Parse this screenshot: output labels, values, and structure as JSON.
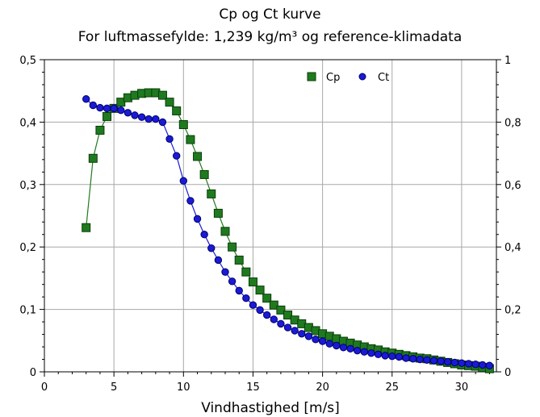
{
  "chart_data": {
    "type": "scatter",
    "title": "Cp og Ct kurve",
    "subtitle": "For luftmassefylde: 1,239 kg/m³ og reference-klimadata",
    "xlabel": "Vindhastighed [m/s]",
    "xlim": [
      0,
      32.5
    ],
    "ylim_left": [
      0,
      0.5
    ],
    "ylim_right": [
      0,
      1
    ],
    "x_ticks": [
      0,
      5,
      10,
      15,
      20,
      25,
      30
    ],
    "x_tick_labels": [
      "0",
      "5",
      "10",
      "15",
      "20",
      "25",
      "30"
    ],
    "y_left_ticks": [
      0,
      0.1,
      0.2,
      0.3,
      0.4,
      0.5
    ],
    "y_left_tick_labels": [
      "0",
      "0,1",
      "0,2",
      "0,3",
      "0,4",
      "0,5"
    ],
    "y_right_ticks": [
      0,
      0.2,
      0.4,
      0.6,
      0.8,
      1
    ],
    "y_right_tick_labels": [
      "0",
      "0,2",
      "0,4",
      "0,6",
      "0,8",
      "1"
    ],
    "grid": true,
    "legend_position": "top-right",
    "series": [
      {
        "name": "Cp",
        "axis": "left",
        "marker": "square",
        "color": "#1f7a1f",
        "x": [
          3,
          3.5,
          4,
          4.5,
          5,
          5.5,
          6,
          6.5,
          7,
          7.5,
          8,
          8.5,
          9,
          9.5,
          10,
          10.5,
          11,
          11.5,
          12,
          12.5,
          13,
          13.5,
          14,
          14.5,
          15,
          15.5,
          16,
          16.5,
          17,
          17.5,
          18,
          18.5,
          19,
          19.5,
          20,
          20.5,
          21,
          21.5,
          22,
          22.5,
          23,
          23.5,
          24,
          24.5,
          25,
          25.5,
          26,
          26.5,
          27,
          27.5,
          28,
          28.5,
          29,
          29.5,
          30,
          30.5,
          31,
          31.5,
          32
        ],
        "y": [
          0.231,
          0.342,
          0.387,
          0.409,
          0.422,
          0.432,
          0.439,
          0.443,
          0.446,
          0.447,
          0.447,
          0.443,
          0.432,
          0.418,
          0.396,
          0.372,
          0.345,
          0.316,
          0.285,
          0.254,
          0.225,
          0.2,
          0.179,
          0.16,
          0.144,
          0.131,
          0.118,
          0.107,
          0.099,
          0.091,
          0.083,
          0.077,
          0.071,
          0.066,
          0.061,
          0.057,
          0.053,
          0.049,
          0.046,
          0.043,
          0.04,
          0.037,
          0.035,
          0.032,
          0.03,
          0.028,
          0.026,
          0.024,
          0.022,
          0.021,
          0.019,
          0.017,
          0.015,
          0.013,
          0.011,
          0.01,
          0.009,
          0.007,
          0.005
        ]
      },
      {
        "name": "Ct",
        "axis": "right",
        "marker": "circle",
        "color": "#1a1ad6",
        "x": [
          3,
          3.5,
          4,
          4.5,
          5,
          5.5,
          6,
          6.5,
          7,
          7.5,
          8,
          8.5,
          9,
          9.5,
          10,
          10.5,
          11,
          11.5,
          12,
          12.5,
          13,
          13.5,
          14,
          14.5,
          15,
          15.5,
          16,
          16.5,
          17,
          17.5,
          18,
          18.5,
          19,
          19.5,
          20,
          20.5,
          21,
          21.5,
          22,
          22.5,
          23,
          23.5,
          24,
          24.5,
          25,
          25.5,
          26,
          26.5,
          27,
          27.5,
          28,
          28.5,
          29,
          29.5,
          30,
          30.5,
          31,
          31.5,
          32
        ],
        "y": [
          0.874,
          0.854,
          0.846,
          0.844,
          0.844,
          0.838,
          0.83,
          0.822,
          0.816,
          0.81,
          0.81,
          0.8,
          0.746,
          0.692,
          0.612,
          0.548,
          0.49,
          0.44,
          0.396,
          0.358,
          0.32,
          0.29,
          0.26,
          0.236,
          0.214,
          0.198,
          0.182,
          0.168,
          0.154,
          0.142,
          0.132,
          0.122,
          0.114,
          0.104,
          0.098,
          0.09,
          0.084,
          0.078,
          0.074,
          0.068,
          0.064,
          0.06,
          0.056,
          0.052,
          0.05,
          0.048,
          0.044,
          0.042,
          0.04,
          0.038,
          0.036,
          0.034,
          0.032,
          0.03,
          0.028,
          0.026,
          0.024,
          0.022,
          0.02
        ]
      }
    ]
  }
}
